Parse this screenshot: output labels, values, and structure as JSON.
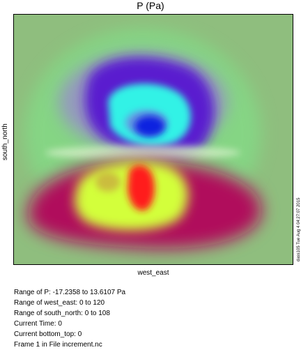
{
  "plot": {
    "title": "P (Pa)",
    "xlabel": "west_east",
    "ylabel": "south_north",
    "stamp": "dass105 Tue Aug  4 04:27:07 2015"
  },
  "colors": {
    "background": "#8fbe7e",
    "green_light": "#7ee88a",
    "purple": "#5a1ccf",
    "violet": "#7a3fd1",
    "cyan": "#33f2e6",
    "blue": "#0b23e0",
    "red_magenta": "#b0115c",
    "yellow_green": "#d3ff3a",
    "red": "#ff1a1a"
  },
  "info": {
    "line1": "Range of P: -17.2358 to 13.6107 Pa",
    "line2": "Range of west_east: 0 to 120",
    "line3": "Range of south_north: 0 to 108",
    "line4": "Current Time: 0",
    "line5": "Current bottom_top: 0",
    "line6": "Frame 1 in File increment.nc"
  }
}
